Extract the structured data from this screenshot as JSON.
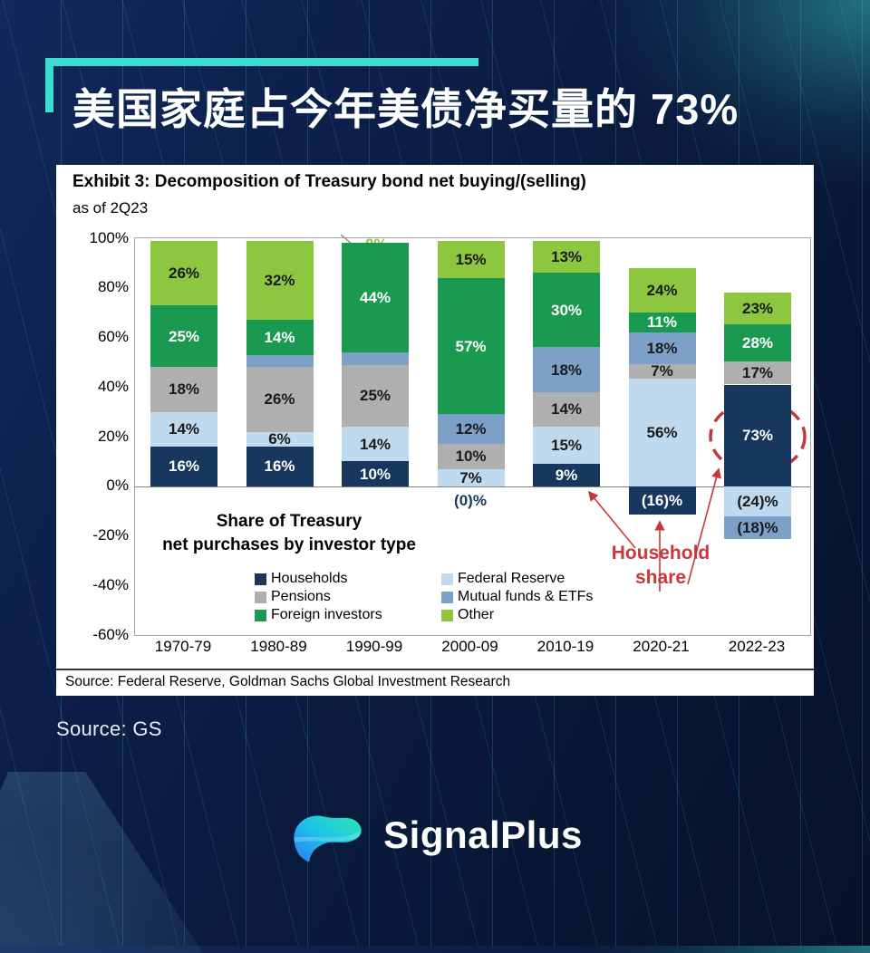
{
  "page": {
    "title": "美国家庭占今年美债净买量的 73%",
    "source_note": "Source: GS",
    "brand_name": "SignalPlus",
    "accent_color": "#3BDCD2",
    "background_color": "#0A1C40",
    "annotation_color": "#C9373B"
  },
  "chart": {
    "exhibit_title": "Exhibit 3: Decomposition of Treasury bond net buying/(selling)",
    "subtitle": "as of 2Q23",
    "footnote": "Source: Federal Reserve, Goldman Sachs Global Investment Research",
    "legend_title_line1": "Share of Treasury",
    "legend_title_line2": "net purchases by investor type",
    "annotation_line1": "Household",
    "annotation_line2": "share",
    "household_zero_label": "(0)%",
    "other_zero_label": "0%"
  },
  "chart_data": {
    "type": "bar",
    "stacked": true,
    "title": "Exhibit 3: Decomposition of Treasury bond net buying/(selling)",
    "subtitle": "as of 2Q23",
    "ylim": [
      -60,
      100
    ],
    "grid": false,
    "legend_position": "inside-bottom-left",
    "ytick_labels": [
      "100%",
      "80%",
      "60%",
      "40%",
      "20%",
      "0%",
      "-20%",
      "-40%",
      "-60%"
    ],
    "ytick_values": [
      100,
      80,
      60,
      40,
      20,
      0,
      -20,
      -40,
      -60
    ],
    "categories": [
      "1970-79",
      "1980-89",
      "1990-99",
      "2000-09",
      "2010-19",
      "2020-21",
      "2022-23"
    ],
    "legend": [
      {
        "series": "Households",
        "color": "#17375E",
        "text_color": "#FFFFFF"
      },
      {
        "series": "Pensions",
        "color": "#AFAFAF",
        "text_color": "#1A1A1A"
      },
      {
        "series": "Foreign investors",
        "color": "#1A9A50",
        "text_color": "#FFFFFF"
      },
      {
        "series": "Federal Reserve",
        "color": "#BFD9EF",
        "text_color": "#1A1A1A"
      },
      {
        "series": "Mutual funds & ETFs",
        "color": "#7DA0C9",
        "text_color": "#1A1A1A"
      },
      {
        "series": "Other",
        "color": "#8DC63F",
        "text_color": "#1A1A1A"
      }
    ],
    "bars": [
      {
        "category": "1970-79",
        "segments": [
          {
            "series": "Households",
            "value": 16,
            "label": "16%"
          },
          {
            "series": "Federal Reserve",
            "value": 14,
            "label": "14%"
          },
          {
            "series": "Pensions",
            "value": 18,
            "label": "18%"
          },
          {
            "series": "Foreign investors",
            "value": 25,
            "label": "25%"
          },
          {
            "series": "Other",
            "value": 26,
            "label": "26%"
          }
        ]
      },
      {
        "category": "1980-89",
        "segments": [
          {
            "series": "Households",
            "value": 16,
            "label": "16%"
          },
          {
            "series": "Federal Reserve",
            "value": 6,
            "label": "6%"
          },
          {
            "series": "Pensions",
            "value": 26,
            "label": "26%"
          },
          {
            "series": "Mutual funds & ETFs",
            "value": 5,
            "label": null
          },
          {
            "series": "Foreign investors",
            "value": 14,
            "label": "14%"
          },
          {
            "series": "Other",
            "value": 32,
            "label": "32%"
          }
        ]
      },
      {
        "category": "1990-99",
        "segments": [
          {
            "series": "Households",
            "value": 10,
            "label": "10%"
          },
          {
            "series": "Federal Reserve",
            "value": 14,
            "label": "14%"
          },
          {
            "series": "Pensions",
            "value": 25,
            "label": "25%"
          },
          {
            "series": "Mutual funds & ETFs",
            "value": 5,
            "label": null
          },
          {
            "series": "Foreign investors",
            "value": 44,
            "label": "44%"
          },
          {
            "series": "Other",
            "value": 0,
            "label": "0%",
            "callout": "top"
          }
        ]
      },
      {
        "category": "2000-09",
        "segments": [
          {
            "series": "Households",
            "value": 0,
            "label": "(0)%",
            "callout": "below"
          },
          {
            "series": "Federal Reserve",
            "value": 7,
            "label": "7%"
          },
          {
            "series": "Pensions",
            "value": 10,
            "label": "10%"
          },
          {
            "series": "Mutual funds & ETFs",
            "value": 12,
            "label": "12%"
          },
          {
            "series": "Foreign investors",
            "value": 57,
            "plot": 55,
            "label": "57%"
          },
          {
            "series": "Other",
            "value": 15,
            "label": "15%"
          }
        ]
      },
      {
        "category": "2010-19",
        "segments": [
          {
            "series": "Households",
            "value": 9,
            "label": "9%"
          },
          {
            "series": "Federal Reserve",
            "value": 15,
            "label": "15%"
          },
          {
            "series": "Pensions",
            "value": 14,
            "label": "14%"
          },
          {
            "series": "Mutual funds & ETFs",
            "value": 18,
            "label": "18%"
          },
          {
            "series": "Foreign investors",
            "value": 30,
            "label": "30%"
          },
          {
            "series": "Other",
            "value": 13,
            "label": "13%"
          }
        ]
      },
      {
        "category": "2020-21",
        "segments": [
          {
            "series": "Households",
            "value": -16,
            "plot": -11.5,
            "label": "(16)%"
          },
          {
            "series": "Federal Reserve",
            "value": 56,
            "plot": 43.5,
            "label": "56%"
          },
          {
            "series": "Pensions",
            "value": 7,
            "plot": 5.8,
            "label": "7%"
          },
          {
            "series": "Mutual funds & ETFs",
            "value": 18,
            "plot": 12.8,
            "label": "18%"
          },
          {
            "series": "Foreign investors",
            "value": 11,
            "plot": 8,
            "label": "11%"
          },
          {
            "series": "Other",
            "value": 24,
            "plot": 18,
            "label": "24%"
          }
        ]
      },
      {
        "category": "2022-23",
        "segments": [
          {
            "series": "Households",
            "value": 73,
            "plot": 41,
            "label": "73%"
          },
          {
            "series": "Pensions",
            "value": 17,
            "plot": 9.2,
            "label": "17%"
          },
          {
            "series": "Foreign investors",
            "value": 28,
            "plot": 15,
            "label": "28%"
          },
          {
            "series": "Other",
            "value": 23,
            "plot": 12.8,
            "label": "23%"
          },
          {
            "series": "Federal Reserve",
            "value": -24,
            "plot": -12.2,
            "label": "(24)%"
          },
          {
            "series": "Mutual funds & ETFs",
            "value": -18,
            "plot": -9.2,
            "label": "(18)%"
          }
        ]
      }
    ]
  }
}
